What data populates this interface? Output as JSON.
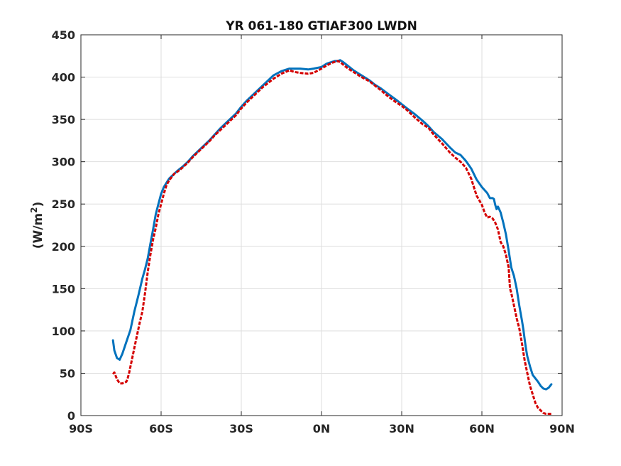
{
  "chart_data": {
    "type": "line",
    "title": "YR 061-180 GTIAF300 LWDN",
    "xlabel": "",
    "ylabel": "(W/m",
    "ylabel_superscript": "2",
    "ylabel_suffix": ")",
    "xlim": [
      -90,
      90
    ],
    "ylim": [
      0,
      450
    ],
    "grid": true,
    "legend": "none",
    "x_ticks": [
      {
        "value": -90,
        "label": "90S"
      },
      {
        "value": -60,
        "label": "60S"
      },
      {
        "value": -30,
        "label": "30S"
      },
      {
        "value": 0,
        "label": "0N"
      },
      {
        "value": 30,
        "label": "30N"
      },
      {
        "value": 60,
        "label": "60N"
      },
      {
        "value": 90,
        "label": "90N"
      }
    ],
    "y_ticks": [
      {
        "value": 0,
        "label": "0"
      },
      {
        "value": 50,
        "label": "50"
      },
      {
        "value": 100,
        "label": "100"
      },
      {
        "value": 150,
        "label": "150"
      },
      {
        "value": 200,
        "label": "200"
      },
      {
        "value": 250,
        "label": "250"
      },
      {
        "value": 300,
        "label": "300"
      },
      {
        "value": 350,
        "label": "350"
      },
      {
        "value": 400,
        "label": "400"
      },
      {
        "value": 450,
        "label": "450"
      }
    ],
    "series": [
      {
        "color": "#0072BD",
        "style": "solid",
        "x": [
          -78,
          -77.5,
          -76.5,
          -75.5,
          -74.5,
          -73,
          -71.5,
          -70,
          -68.5,
          -67,
          -66,
          -65,
          -64,
          -63,
          -62,
          -61,
          -60,
          -59,
          -58,
          -57,
          -56,
          -55,
          -54,
          -52,
          -50,
          -48,
          -45,
          -42,
          -40,
          -38,
          -35,
          -32,
          -30,
          -28,
          -25,
          -22,
          -20,
          -18,
          -15,
          -12,
          -10,
          -8,
          -5,
          -3,
          0,
          2,
          4,
          5,
          6,
          7,
          8,
          10,
          12,
          15,
          18,
          20,
          22,
          25,
          28,
          30,
          32,
          35,
          38,
          40,
          42,
          45,
          48,
          50,
          52,
          54,
          56,
          58,
          60,
          62,
          63,
          64,
          64.5,
          65,
          65.5,
          66,
          67,
          68,
          69,
          70,
          71,
          72,
          73,
          74,
          75,
          75.5,
          76,
          76.5,
          77,
          78,
          79,
          80,
          81,
          82,
          83,
          84,
          85,
          86
        ],
        "y": [
          89,
          77,
          68,
          66,
          73,
          87,
          101,
          123,
          142,
          162,
          173,
          186,
          203,
          220,
          238,
          250,
          262,
          270,
          275,
          280,
          283,
          286,
          289,
          294,
          300,
          307,
          316,
          325,
          332,
          339,
          348,
          357,
          365,
          372,
          381,
          390,
          396,
          402,
          407,
          410,
          410,
          410,
          409,
          410,
          412,
          416,
          418,
          419,
          419,
          420,
          418,
          413,
          408,
          402,
          396,
          391,
          387,
          380,
          373,
          368,
          363,
          356,
          348,
          342,
          335,
          327,
          317,
          311,
          308,
          301,
          292,
          279,
          270,
          263,
          257,
          257,
          256,
          249,
          244,
          247,
          240,
          228,
          214,
          195,
          175,
          165,
          150,
          130,
          112,
          102,
          90,
          79,
          70,
          58,
          48,
          44,
          40,
          35,
          32,
          31,
          33,
          37
        ]
      },
      {
        "color": "#D40000",
        "style": "dashed",
        "x": [
          -78,
          -77.5,
          -76.5,
          -75.5,
          -74.5,
          -73,
          -72.5,
          -72,
          -71,
          -70,
          -69,
          -68,
          -67,
          -66,
          -65,
          -64,
          -63,
          -62,
          -61,
          -60,
          -59,
          -58,
          -57,
          -56,
          -55,
          -54,
          -52,
          -50,
          -48,
          -45,
          -42,
          -40,
          -38,
          -35,
          -32,
          -30,
          -28,
          -25,
          -22,
          -20,
          -18,
          -15,
          -12,
          -10,
          -8,
          -5,
          -3,
          0,
          2,
          4,
          5,
          6,
          7,
          8,
          10,
          12,
          15,
          18,
          20,
          22,
          25,
          28,
          30,
          32,
          35,
          38,
          40,
          42,
          45,
          48,
          50,
          52,
          54,
          56,
          58,
          60,
          61,
          62,
          63,
          64,
          65,
          66,
          67,
          68,
          69,
          70,
          70.5,
          71,
          72,
          73,
          74,
          75,
          76,
          77,
          78,
          79,
          80,
          81,
          82,
          83,
          84,
          85,
          86
        ],
        "y": [
          49,
          51,
          43,
          38,
          38,
          40,
          44,
          50,
          65,
          80,
          95,
          110,
          123,
          145,
          170,
          190,
          208,
          222,
          238,
          250,
          262,
          272,
          278,
          282,
          286,
          288,
          293,
          299,
          306,
          315,
          324,
          331,
          337,
          346,
          355,
          363,
          370,
          379,
          388,
          393,
          398,
          404,
          408,
          406,
          405,
          404,
          405,
          410,
          414,
          417,
          418,
          419,
          418,
          415,
          410,
          406,
          400,
          395,
          390,
          385,
          377,
          370,
          366,
          361,
          352,
          344,
          340,
          332,
          322,
          311,
          305,
          300,
          293,
          280,
          260,
          249,
          240,
          234,
          235,
          233,
          228,
          220,
          205,
          200,
          190,
          175,
          150,
          145,
          130,
          115,
          103,
          85,
          65,
          50,
          35,
          25,
          15,
          9,
          6,
          3,
          2,
          2,
          2
        ]
      }
    ]
  }
}
